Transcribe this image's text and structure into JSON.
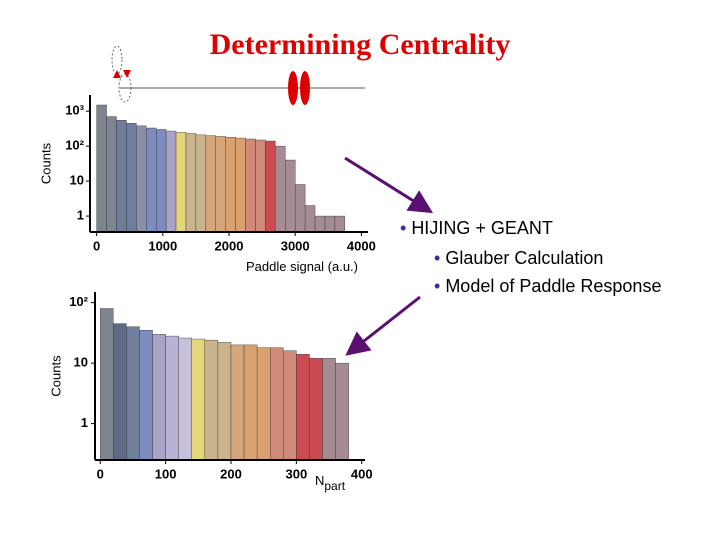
{
  "title": "Determining Centrality",
  "bullets": {
    "main": "HIJING + GEANT",
    "sub": [
      "Glauber Calculation",
      "Model of Paddle Response"
    ]
  },
  "chart_data": [
    {
      "type": "histogram",
      "ylabel": "Counts",
      "xlabel": "Paddle signal (a.u.)",
      "log_y": true,
      "bins": [
        0,
        150,
        300,
        450,
        600,
        750,
        900,
        1050,
        1200,
        1350,
        1500,
        1650,
        1800,
        1950,
        2100,
        2250,
        2400,
        2550,
        2700,
        2850,
        3000,
        3150,
        3300,
        3450,
        3600,
        3750
      ],
      "values": [
        1500,
        700,
        550,
        450,
        380,
        330,
        300,
        270,
        250,
        230,
        210,
        200,
        190,
        180,
        170,
        160,
        150,
        140,
        100,
        40,
        8,
        2,
        1,
        1,
        1
      ],
      "colors": [
        "#7d8590",
        "#7d8590",
        "#6f7e9a",
        "#6f7e9a",
        "#8a8fa8",
        "#7c8cc0",
        "#7c8cc0",
        "#a9a3c6",
        "#e3d77a",
        "#c9b48e",
        "#c9b48e",
        "#d4a67a",
        "#d4a67a",
        "#d9a070",
        "#d9a070",
        "#d08a78",
        "#d08a78",
        "#cc4a52",
        "#a48c92",
        "#a48c92",
        "#a48c92",
        "#a48c92",
        "#a48c92",
        "#a48c92",
        "#a48c92"
      ],
      "xlim": [
        -100,
        4100
      ],
      "xticks": [
        0,
        1000,
        2000,
        3000,
        4000
      ],
      "ylim": [
        0.35,
        2900
      ],
      "yticks": [
        1,
        10,
        {
          "value": 100,
          "label": "10²"
        },
        {
          "value": 1000,
          "label": "10³"
        }
      ]
    },
    {
      "type": "histogram",
      "ylabel": "Counts",
      "xlabel": "N",
      "xlabel_subscript": "part",
      "log_y": true,
      "bins": [
        0,
        20,
        40,
        60,
        80,
        100,
        120,
        140,
        160,
        180,
        200,
        220,
        240,
        260,
        280,
        300,
        320,
        340,
        360,
        380
      ],
      "values": [
        80,
        45,
        40,
        35,
        30,
        28,
        26,
        25,
        24,
        22,
        20,
        20,
        18,
        18,
        16,
        14,
        12,
        12,
        10
      ],
      "colors": [
        "#7d8590",
        "#5f6a86",
        "#6f7e9a",
        "#7c8cc0",
        "#a9a3c6",
        "#b8b2d4",
        "#c8c0d8",
        "#e3d77a",
        "#c9b48e",
        "#c9b48e",
        "#d4a67a",
        "#d9a070",
        "#d9a070",
        "#d08a78",
        "#d08a78",
        "#cc4a52",
        "#cc4a52",
        "#a48c92",
        "#a48c92"
      ],
      "xlim": [
        -8,
        405
      ],
      "xticks": [
        0,
        100,
        200,
        300,
        400
      ],
      "ylim": [
        0.25,
        150
      ],
      "yticks": [
        1,
        10,
        {
          "value": 100,
          "label": "10²"
        }
      ]
    }
  ]
}
